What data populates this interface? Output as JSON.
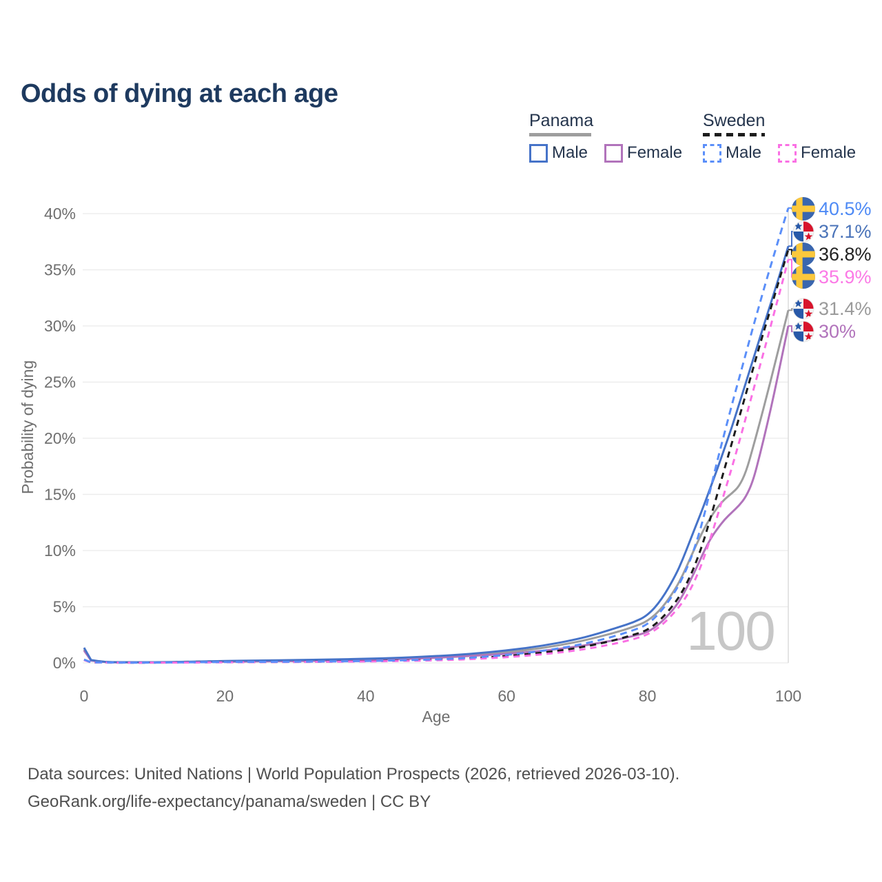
{
  "title": "Odds of dying at each age",
  "legend": {
    "groups": [
      {
        "label": "Panama",
        "line_style": "solid",
        "line_color": "#9e9e9e",
        "items": [
          {
            "label": "Male",
            "color": "#4673c8"
          },
          {
            "label": "Female",
            "color": "#b173bb"
          }
        ]
      },
      {
        "label": "Sweden",
        "line_style": "dashed",
        "line_color": "#1c1c1c",
        "items": [
          {
            "label": "Male",
            "color": "#5b8ff9"
          },
          {
            "label": "Female",
            "color": "#fa70e4"
          }
        ]
      }
    ]
  },
  "chart_data": {
    "type": "line",
    "title": "Odds of dying at each age",
    "xlabel": "Age",
    "ylabel": "Probability of dying",
    "xlim": [
      0,
      100
    ],
    "ylim": [
      0,
      40
    ],
    "x_ticks": [
      0,
      20,
      40,
      60,
      80,
      100
    ],
    "y_ticks": [
      {
        "value": 0,
        "label": "0%"
      },
      {
        "value": 5,
        "label": "5%"
      },
      {
        "value": 10,
        "label": "10%"
      },
      {
        "value": 15,
        "label": "15%"
      },
      {
        "value": 20,
        "label": "20%"
      },
      {
        "value": 25,
        "label": "25%"
      },
      {
        "value": 30,
        "label": "30%"
      },
      {
        "value": 35,
        "label": "35%"
      },
      {
        "value": 40,
        "label": "40%"
      }
    ],
    "grid": "horizontal",
    "legend_position": "top-right",
    "hover_age_label": "100",
    "series": [
      {
        "id": "panama-all",
        "name": "Panama (both sexes)",
        "country": "Panama",
        "flag": "panama-flag-icon",
        "color": "#9e9e9e",
        "dash": null,
        "end_value": 31.4,
        "end_label": "31.4%",
        "label_color": "#9a9a9a",
        "points": [
          [
            0,
            1.2
          ],
          [
            1,
            0.22
          ],
          [
            3,
            0.07
          ],
          [
            5,
            0.05
          ],
          [
            10,
            0.05
          ],
          [
            15,
            0.08
          ],
          [
            20,
            0.13
          ],
          [
            25,
            0.16
          ],
          [
            30,
            0.19
          ],
          [
            35,
            0.23
          ],
          [
            40,
            0.28
          ],
          [
            45,
            0.37
          ],
          [
            50,
            0.5
          ],
          [
            55,
            0.7
          ],
          [
            60,
            0.95
          ],
          [
            65,
            1.3
          ],
          [
            70,
            1.85
          ],
          [
            73,
            2.3
          ],
          [
            76,
            2.8
          ],
          [
            78,
            3.2
          ],
          [
            80,
            3.7
          ],
          [
            82,
            4.8
          ],
          [
            84,
            6.6
          ],
          [
            85,
            7.8
          ],
          [
            86,
            9.2
          ],
          [
            87,
            10.6
          ],
          [
            88,
            11.9
          ],
          [
            89,
            13.0
          ],
          [
            90,
            13.9
          ],
          [
            91,
            14.6
          ],
          [
            92,
            15.1
          ],
          [
            93,
            15.7
          ],
          [
            94,
            17.0
          ],
          [
            95,
            19.2
          ],
          [
            96,
            21.5
          ],
          [
            97,
            23.9
          ],
          [
            98,
            26.4
          ],
          [
            99,
            28.9
          ],
          [
            100,
            31.4
          ]
        ]
      },
      {
        "id": "panama-female",
        "name": "Panama Female",
        "country": "Panama",
        "flag": "panama-flag-icon",
        "color": "#b173bb",
        "dash": null,
        "end_value": 30,
        "end_label": "30%",
        "label_color": "#b173bb",
        "points": [
          [
            0,
            1.1
          ],
          [
            1,
            0.2
          ],
          [
            3,
            0.06
          ],
          [
            5,
            0.05
          ],
          [
            10,
            0.05
          ],
          [
            15,
            0.07
          ],
          [
            20,
            0.1
          ],
          [
            25,
            0.13
          ],
          [
            30,
            0.16
          ],
          [
            35,
            0.2
          ],
          [
            40,
            0.25
          ],
          [
            45,
            0.33
          ],
          [
            50,
            0.45
          ],
          [
            55,
            0.62
          ],
          [
            60,
            0.8
          ],
          [
            65,
            1.05
          ],
          [
            70,
            1.45
          ],
          [
            73,
            1.75
          ],
          [
            76,
            2.1
          ],
          [
            78,
            2.4
          ],
          [
            80,
            2.7
          ],
          [
            82,
            3.6
          ],
          [
            84,
            5.0
          ],
          [
            85,
            6.0
          ],
          [
            86,
            7.2
          ],
          [
            87,
            8.5
          ],
          [
            88,
            9.9
          ],
          [
            89,
            11.1
          ],
          [
            90,
            12.0
          ],
          [
            91,
            12.8
          ],
          [
            92,
            13.4
          ],
          [
            93,
            14.0
          ],
          [
            94,
            14.8
          ],
          [
            95,
            16.2
          ],
          [
            96,
            18.6
          ],
          [
            97,
            21.2
          ],
          [
            98,
            24.0
          ],
          [
            99,
            27.0
          ],
          [
            100,
            30.0
          ]
        ]
      },
      {
        "id": "panama-male",
        "name": "Panama Male",
        "country": "Panama",
        "flag": "panama-flag-icon",
        "color": "#4673c8",
        "dash": null,
        "end_value": 37.1,
        "end_label": "37.1%",
        "label_color": "#4a73b8",
        "points": [
          [
            0,
            1.35
          ],
          [
            1,
            0.25
          ],
          [
            3,
            0.08
          ],
          [
            5,
            0.06
          ],
          [
            10,
            0.06
          ],
          [
            15,
            0.1
          ],
          [
            20,
            0.17
          ],
          [
            25,
            0.21
          ],
          [
            30,
            0.25
          ],
          [
            35,
            0.3
          ],
          [
            40,
            0.36
          ],
          [
            45,
            0.45
          ],
          [
            50,
            0.6
          ],
          [
            55,
            0.8
          ],
          [
            60,
            1.1
          ],
          [
            65,
            1.5
          ],
          [
            70,
            2.1
          ],
          [
            73,
            2.6
          ],
          [
            76,
            3.2
          ],
          [
            78,
            3.6
          ],
          [
            80,
            4.2
          ],
          [
            82,
            5.6
          ],
          [
            84,
            7.8
          ],
          [
            85,
            9.2
          ],
          [
            86,
            10.8
          ],
          [
            87,
            12.4
          ],
          [
            88,
            14.0
          ],
          [
            89,
            15.7
          ],
          [
            90,
            17.4
          ],
          [
            91,
            19.2
          ],
          [
            92,
            21.0
          ],
          [
            93,
            23.0
          ],
          [
            94,
            25.0
          ],
          [
            95,
            27.0
          ],
          [
            96,
            29.0
          ],
          [
            97,
            31.0
          ],
          [
            98,
            33.0
          ],
          [
            99,
            35.0
          ],
          [
            100,
            37.1
          ]
        ]
      },
      {
        "id": "sweden-all",
        "name": "Sweden (both sexes)",
        "country": "Sweden",
        "flag": "sweden-flag-icon",
        "color": "#1c1c1c",
        "dash": "9 7",
        "end_value": 36.8,
        "end_label": "36.8%",
        "label_color": "#222222",
        "points": [
          [
            0,
            0.27
          ],
          [
            1,
            0.04
          ],
          [
            5,
            0.02
          ],
          [
            10,
            0.02
          ],
          [
            15,
            0.04
          ],
          [
            20,
            0.07
          ],
          [
            30,
            0.09
          ],
          [
            40,
            0.14
          ],
          [
            50,
            0.26
          ],
          [
            55,
            0.4
          ],
          [
            60,
            0.6
          ],
          [
            65,
            0.9
          ],
          [
            70,
            1.3
          ],
          [
            75,
            1.95
          ],
          [
            78,
            2.5
          ],
          [
            80,
            2.9
          ],
          [
            82,
            3.9
          ],
          [
            84,
            5.4
          ],
          [
            85,
            6.4
          ],
          [
            86,
            7.6
          ],
          [
            87,
            9.1
          ],
          [
            88,
            10.9
          ],
          [
            89,
            13.0
          ],
          [
            90,
            15.2
          ],
          [
            91,
            17.4
          ],
          [
            92,
            19.6
          ],
          [
            93,
            21.8
          ],
          [
            94,
            24.0
          ],
          [
            95,
            26.2
          ],
          [
            96,
            28.4
          ],
          [
            97,
            30.5
          ],
          [
            98,
            32.6
          ],
          [
            99,
            34.7
          ],
          [
            100,
            36.8
          ]
        ]
      },
      {
        "id": "sweden-female",
        "name": "Sweden Female",
        "country": "Sweden",
        "flag": "sweden-flag-icon",
        "color": "#fa70e4",
        "dash": "9 7",
        "end_value": 35.9,
        "end_label": "35.9%",
        "label_color": "#fb7ae6",
        "points": [
          [
            0,
            0.25
          ],
          [
            1,
            0.04
          ],
          [
            5,
            0.02
          ],
          [
            10,
            0.02
          ],
          [
            15,
            0.03
          ],
          [
            20,
            0.05
          ],
          [
            30,
            0.08
          ],
          [
            40,
            0.12
          ],
          [
            50,
            0.22
          ],
          [
            55,
            0.33
          ],
          [
            60,
            0.5
          ],
          [
            65,
            0.75
          ],
          [
            70,
            1.1
          ],
          [
            75,
            1.65
          ],
          [
            78,
            2.1
          ],
          [
            80,
            2.5
          ],
          [
            82,
            3.3
          ],
          [
            84,
            4.6
          ],
          [
            85,
            5.4
          ],
          [
            86,
            6.4
          ],
          [
            87,
            7.7
          ],
          [
            88,
            9.3
          ],
          [
            89,
            11.2
          ],
          [
            90,
            13.2
          ],
          [
            91,
            15.3
          ],
          [
            92,
            17.4
          ],
          [
            93,
            19.6
          ],
          [
            94,
            21.9
          ],
          [
            95,
            24.2
          ],
          [
            96,
            26.5
          ],
          [
            97,
            28.8
          ],
          [
            98,
            31.2
          ],
          [
            99,
            33.5
          ],
          [
            100,
            35.9
          ]
        ]
      },
      {
        "id": "sweden-male",
        "name": "Sweden Male",
        "country": "Sweden",
        "flag": "sweden-flag-icon",
        "color": "#5b8ff9",
        "dash": "10 7",
        "end_value": 40.5,
        "end_label": "40.5%",
        "label_color": "#4e8af5",
        "points": [
          [
            0,
            0.3
          ],
          [
            1,
            0.05
          ],
          [
            5,
            0.02
          ],
          [
            10,
            0.02
          ],
          [
            15,
            0.05
          ],
          [
            20,
            0.08
          ],
          [
            30,
            0.1
          ],
          [
            40,
            0.16
          ],
          [
            50,
            0.3
          ],
          [
            55,
            0.45
          ],
          [
            60,
            0.7
          ],
          [
            65,
            1.05
          ],
          [
            70,
            1.55
          ],
          [
            75,
            2.3
          ],
          [
            78,
            2.9
          ],
          [
            80,
            3.4
          ],
          [
            82,
            4.6
          ],
          [
            84,
            6.4
          ],
          [
            85,
            7.6
          ],
          [
            86,
            9.0
          ],
          [
            87,
            10.8
          ],
          [
            88,
            13.0
          ],
          [
            89,
            15.6
          ],
          [
            90,
            18.2
          ],
          [
            91,
            20.6
          ],
          [
            92,
            23.0
          ],
          [
            93,
            25.3
          ],
          [
            94,
            27.6
          ],
          [
            95,
            29.9
          ],
          [
            96,
            32.1
          ],
          [
            97,
            34.3
          ],
          [
            98,
            36.4
          ],
          [
            99,
            38.5
          ],
          [
            100,
            40.5
          ]
        ]
      }
    ]
  },
  "colors": {
    "title": "#1e3a5f",
    "legend_text": "#25354d",
    "axis_text": "#6f6f6f",
    "gridline": "#ededed",
    "crosshair": "#dcdcdc",
    "watermark": "#c7c7c7",
    "sweden_flag_blue": "#3a66ae",
    "sweden_flag_yellow": "#fcc83c",
    "panama_flag_red": "#d8142c",
    "panama_flag_blue": "#2859a8"
  },
  "footer": {
    "line1": "Data sources: United Nations | World Population Prospects (2026, retrieved 2026-03-10).",
    "line2": "GeoRank.org/life-expectancy/panama/sweden | CC BY"
  }
}
